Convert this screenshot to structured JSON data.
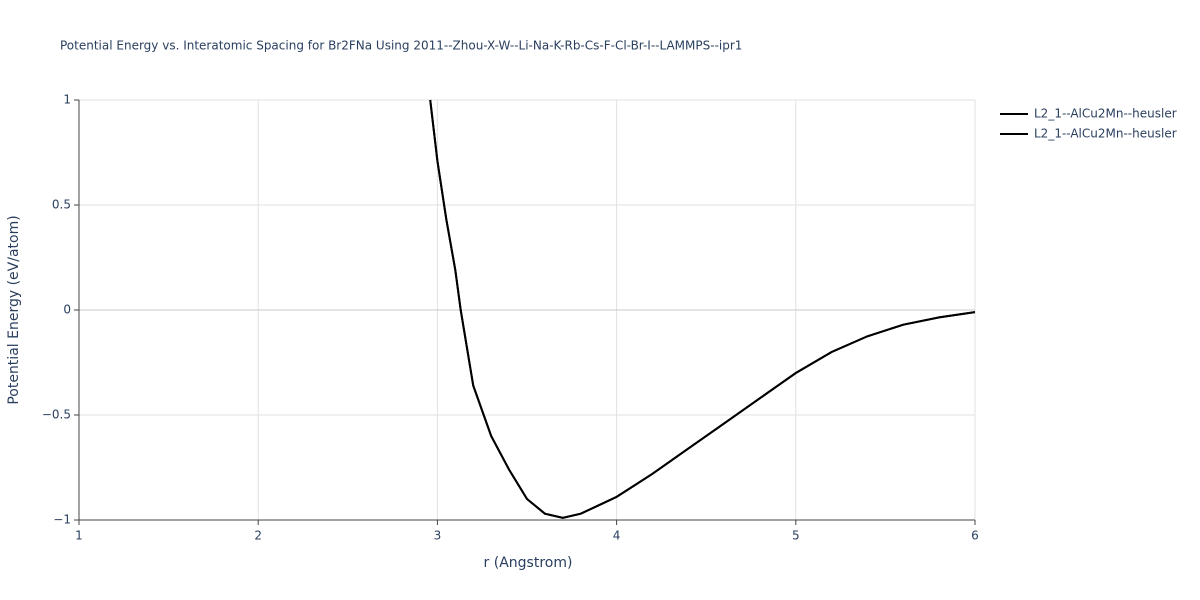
{
  "chart_data": {
    "type": "line",
    "title": "Potential Energy vs. Interatomic Spacing for Br2FNa Using 2011--Zhou-X-W--Li-Na-K-Rb-Cs-F-Cl-Br-I--LAMMPS--ipr1",
    "x_label": "r (Angstrom)",
    "y_label": "Potential Energy (eV/atom)",
    "x": [
      2.96,
      3.0,
      3.05,
      3.1,
      3.13,
      3.2,
      3.3,
      3.4,
      3.5,
      3.6,
      3.7,
      3.8,
      3.9,
      4.0,
      4.2,
      4.4,
      4.6,
      4.8,
      5.0,
      5.2,
      5.4,
      5.6,
      5.8,
      6.0
    ],
    "series": [
      {
        "name": "L2_1--AlCu2Mn--heusler",
        "color": "#000000",
        "values": [
          1.0,
          0.71,
          0.43,
          0.19,
          0.0,
          -0.36,
          -0.6,
          -0.76,
          -0.9,
          -0.97,
          -0.99,
          -0.97,
          -0.93,
          -0.89,
          -0.78,
          -0.66,
          -0.54,
          -0.42,
          -0.3,
          -0.2,
          -0.125,
          -0.07,
          -0.035,
          -0.01
        ]
      },
      {
        "name": "L2_1--AlCu2Mn--heusler",
        "color": "#000000",
        "values": [
          1.0,
          0.71,
          0.43,
          0.19,
          0.0,
          -0.36,
          -0.6,
          -0.76,
          -0.9,
          -0.97,
          -0.99,
          -0.97,
          -0.93,
          -0.89,
          -0.78,
          -0.66,
          -0.54,
          -0.42,
          -0.3,
          -0.2,
          -0.125,
          -0.07,
          -0.035,
          -0.01
        ]
      }
    ],
    "xlim": [
      1,
      6
    ],
    "ylim": [
      -1,
      1
    ],
    "xticks": [
      1,
      2,
      3,
      4,
      5,
      6
    ],
    "yticks": [
      {
        "value": -1,
        "label": "−1"
      },
      {
        "value": -0.5,
        "label": "−0.5"
      },
      0,
      0.5,
      1
    ],
    "grid": true,
    "legend": "top-right"
  }
}
